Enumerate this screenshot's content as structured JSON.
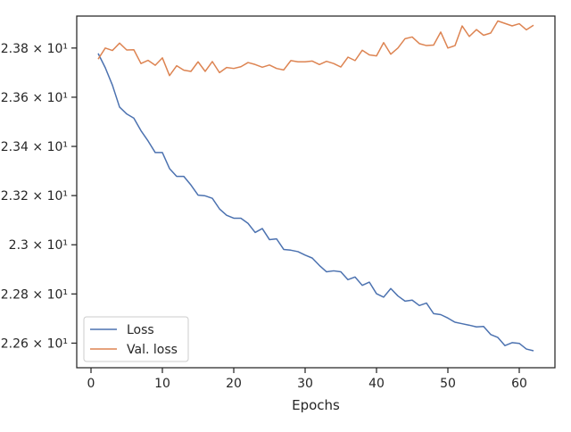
{
  "chart_data": {
    "type": "line",
    "title": "",
    "xlabel": "Epochs",
    "ylabel": "",
    "xlim": [
      -2,
      65
    ],
    "ylim": [
      22.5,
      23.93
    ],
    "grid": false,
    "legend_position": "lower-left",
    "x_ticks": [
      {
        "value": 0,
        "label": "0"
      },
      {
        "value": 10,
        "label": "10"
      },
      {
        "value": 20,
        "label": "20"
      },
      {
        "value": 30,
        "label": "30"
      },
      {
        "value": 40,
        "label": "40"
      },
      {
        "value": 50,
        "label": "50"
      },
      {
        "value": 60,
        "label": "60"
      }
    ],
    "y_ticks": [
      {
        "value": 22.6,
        "label": "2.26 × 10¹"
      },
      {
        "value": 22.8,
        "label": "2.28 × 10¹"
      },
      {
        "value": 23.0,
        "label": "2.3 × 10¹"
      },
      {
        "value": 23.2,
        "label": "2.32 × 10¹"
      },
      {
        "value": 23.4,
        "label": "2.34 × 10¹"
      },
      {
        "value": 23.6,
        "label": "2.36 × 10¹"
      },
      {
        "value": 23.8,
        "label": "2.38 × 10¹"
      }
    ],
    "x": [
      1,
      2,
      3,
      4,
      5,
      6,
      7,
      8,
      9,
      10,
      11,
      12,
      13,
      14,
      15,
      16,
      17,
      18,
      19,
      20,
      21,
      22,
      23,
      24,
      25,
      26,
      27,
      28,
      29,
      30,
      31,
      32,
      33,
      34,
      35,
      36,
      37,
      38,
      39,
      40,
      41,
      42,
      43,
      44,
      45,
      46,
      47,
      48,
      49,
      50,
      51,
      52,
      53,
      54,
      55,
      56,
      57,
      58,
      59,
      60,
      61,
      62
    ],
    "series": [
      {
        "name": "Loss",
        "color": "#4c72b0",
        "values": [
          23.778,
          23.72,
          23.649,
          23.56,
          23.532,
          23.515,
          23.464,
          23.422,
          23.375,
          23.375,
          23.31,
          23.278,
          23.278,
          23.243,
          23.202,
          23.199,
          23.189,
          23.146,
          23.12,
          23.108,
          23.108,
          23.087,
          23.05,
          23.066,
          23.021,
          23.024,
          22.981,
          22.978,
          22.972,
          22.958,
          22.946,
          22.916,
          22.89,
          22.894,
          22.89,
          22.858,
          22.869,
          22.835,
          22.848,
          22.801,
          22.787,
          22.822,
          22.792,
          22.771,
          22.775,
          22.753,
          22.763,
          22.72,
          22.716,
          22.702,
          22.685,
          22.679,
          22.673,
          22.666,
          22.668,
          22.635,
          22.623,
          22.59,
          22.602,
          22.599,
          22.576,
          22.569
        ]
      },
      {
        "name": "Val. loss",
        "color": "#dd8452",
        "values": [
          23.755,
          23.8,
          23.79,
          23.82,
          23.792,
          23.793,
          23.737,
          23.75,
          23.73,
          23.76,
          23.688,
          23.728,
          23.71,
          23.705,
          23.744,
          23.705,
          23.745,
          23.7,
          23.721,
          23.717,
          23.724,
          23.741,
          23.733,
          23.722,
          23.731,
          23.717,
          23.711,
          23.749,
          23.744,
          23.744,
          23.747,
          23.733,
          23.746,
          23.737,
          23.723,
          23.763,
          23.749,
          23.791,
          23.772,
          23.768,
          23.822,
          23.775,
          23.8,
          23.838,
          23.845,
          23.818,
          23.81,
          23.812,
          23.865,
          23.8,
          23.81,
          23.89,
          23.847,
          23.875,
          23.852,
          23.861,
          23.91,
          23.9,
          23.89,
          23.899,
          23.874,
          23.893
        ]
      }
    ]
  }
}
